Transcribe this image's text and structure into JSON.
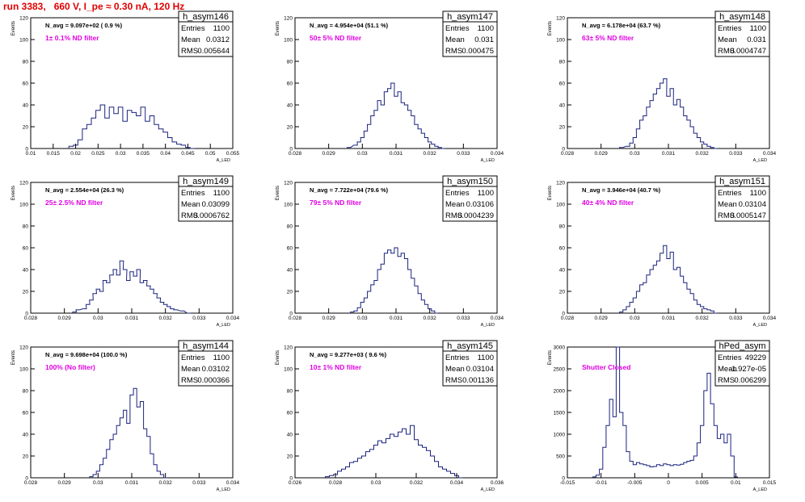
{
  "title": "run 3383,   660 V, I_pe ≈ 0.30 nA, 120 Hz",
  "axis_labels": {
    "y": "Events",
    "x": "A_LED"
  },
  "stat_labels": {
    "entries": "Entries",
    "mean": "Mean",
    "rms": "RMS"
  },
  "colors": {
    "hist": "#1a237e",
    "title": "#e00000",
    "filter_label": "#e000e0"
  },
  "chart_data": [
    {
      "type": "histogram",
      "name": "h_asym146",
      "nlabel": "N_avg = 9.097e+02 ( 0.9 %)",
      "filter": "1± 0.1% ND filter",
      "entries": "1100",
      "mean": "0.0312",
      "rms": "0.005644",
      "xlim": [
        0.01,
        0.055
      ],
      "ylim": [
        0,
        120
      ],
      "xticks": [
        "0.01",
        "0.015",
        "0.02",
        "0.025",
        "0.03",
        "0.035",
        "0.04",
        "0.045",
        "0.05",
        "0.055"
      ],
      "yticks": [
        "0",
        "20",
        "40",
        "60",
        "80",
        "100",
        "120"
      ],
      "x": [
        0.019,
        0.02,
        0.021,
        0.022,
        0.023,
        0.024,
        0.025,
        0.026,
        0.027,
        0.028,
        0.029,
        0.03,
        0.031,
        0.032,
        0.033,
        0.034,
        0.035,
        0.036,
        0.037,
        0.038,
        0.039,
        0.04,
        0.041,
        0.042,
        0.043,
        0.044,
        0.045,
        0.046
      ],
      "values": [
        2,
        3,
        8,
        18,
        22,
        28,
        35,
        40,
        28,
        38,
        32,
        38,
        25,
        35,
        33,
        30,
        38,
        25,
        30,
        22,
        18,
        15,
        10,
        6,
        4,
        3,
        1,
        0
      ]
    },
    {
      "type": "histogram",
      "name": "h_asym147",
      "nlabel": "N_avg = 4.954e+04 (51.1 %)",
      "filter": "50± 5% ND filter",
      "entries": "1100",
      "mean": "0.031",
      "rms": "0.000475",
      "xlim": [
        0.028,
        0.034
      ],
      "ylim": [
        0,
        120
      ],
      "xticks": [
        "0.028",
        "0.029",
        "0.03",
        "0.031",
        "0.032",
        "0.033",
        "0.034"
      ],
      "yticks": [
        "0",
        "20",
        "40",
        "60",
        "80",
        "100",
        "120"
      ],
      "x": [
        0.0296,
        0.0298,
        0.0299,
        0.03,
        0.0301,
        0.0302,
        0.0303,
        0.0304,
        0.0305,
        0.0306,
        0.0307,
        0.0308,
        0.0309,
        0.031,
        0.0311,
        0.0312,
        0.0313,
        0.0314,
        0.0315,
        0.0316,
        0.0317,
        0.0318,
        0.0319,
        0.032,
        0.0321,
        0.0322,
        0.0323,
        0.0324
      ],
      "values": [
        1,
        3,
        6,
        10,
        16,
        22,
        30,
        35,
        44,
        40,
        52,
        55,
        60,
        48,
        52,
        42,
        40,
        35,
        30,
        22,
        18,
        14,
        10,
        6,
        4,
        2,
        1,
        0
      ]
    },
    {
      "type": "histogram",
      "name": "h_asym148",
      "nlabel": "N_avg = 6.178e+04 (63.7 %)",
      "filter": "63± 5% ND filter",
      "entries": "1100",
      "mean": "0.031",
      "rms": "0.0004747",
      "xlim": [
        0.028,
        0.034
      ],
      "ylim": [
        0,
        120
      ],
      "xticks": [
        "0.028",
        "0.029",
        "0.03",
        "0.031",
        "0.032",
        "0.033",
        "0.034"
      ],
      "yticks": [
        "0",
        "20",
        "40",
        "60",
        "80",
        "100",
        "120"
      ],
      "x": [
        0.0296,
        0.0298,
        0.0299,
        0.03,
        0.0301,
        0.0302,
        0.0303,
        0.0304,
        0.0305,
        0.0306,
        0.0307,
        0.0308,
        0.0309,
        0.031,
        0.0311,
        0.0312,
        0.0313,
        0.0314,
        0.0315,
        0.0316,
        0.0317,
        0.0318,
        0.0319,
        0.032,
        0.0321,
        0.0322,
        0.0323,
        0.0324
      ],
      "values": [
        1,
        2,
        5,
        10,
        18,
        26,
        30,
        38,
        44,
        50,
        55,
        60,
        64,
        48,
        55,
        40,
        45,
        38,
        30,
        26,
        20,
        14,
        10,
        6,
        4,
        2,
        1,
        0
      ]
    },
    {
      "type": "histogram",
      "name": "h_asym149",
      "nlabel": "N_avg = 2.554e+04 (26.3 %)",
      "filter": "25± 2.5% ND filter",
      "entries": "1100",
      "mean": "0.03099",
      "rms": "0.0006762",
      "xlim": [
        0.028,
        0.034
      ],
      "ylim": [
        0,
        120
      ],
      "xticks": [
        "0.028",
        "0.029",
        "0.03",
        "0.031",
        "0.032",
        "0.033",
        "0.034"
      ],
      "yticks": [
        "0",
        "20",
        "40",
        "60",
        "80",
        "100",
        "120"
      ],
      "x": [
        0.0293,
        0.0294,
        0.0296,
        0.0297,
        0.0298,
        0.0299,
        0.03,
        0.0301,
        0.0302,
        0.0303,
        0.0304,
        0.0305,
        0.0306,
        0.0307,
        0.0308,
        0.0309,
        0.031,
        0.0311,
        0.0312,
        0.0313,
        0.0314,
        0.0315,
        0.0316,
        0.0317,
        0.0318,
        0.0319,
        0.032,
        0.0321,
        0.0322,
        0.0323,
        0.0325,
        0.0327
      ],
      "values": [
        1,
        3,
        4,
        8,
        12,
        18,
        22,
        20,
        30,
        28,
        35,
        40,
        35,
        48,
        40,
        30,
        38,
        34,
        40,
        28,
        30,
        25,
        22,
        18,
        14,
        10,
        8,
        6,
        4,
        3,
        2,
        0
      ]
    },
    {
      "type": "histogram",
      "name": "h_asym150",
      "nlabel": "N_avg = 7.722e+04 (79.6 %)",
      "filter": "79± 5% ND filter",
      "entries": "1100",
      "mean": "0.03106",
      "rms": "0.0004239",
      "xlim": [
        0.028,
        0.034
      ],
      "ylim": [
        0,
        120
      ],
      "xticks": [
        "0.028",
        "0.029",
        "0.03",
        "0.031",
        "0.032",
        "0.033",
        "0.034"
      ],
      "yticks": [
        "0",
        "20",
        "40",
        "60",
        "80",
        "100",
        "120"
      ],
      "x": [
        0.0297,
        0.0298,
        0.0299,
        0.03,
        0.0301,
        0.0302,
        0.0303,
        0.0304,
        0.0305,
        0.0306,
        0.0307,
        0.0308,
        0.0309,
        0.031,
        0.0311,
        0.0312,
        0.0313,
        0.0314,
        0.0315,
        0.0316,
        0.0317,
        0.0318,
        0.0319,
        0.032,
        0.0321,
        0.0322
      ],
      "values": [
        1,
        2,
        5,
        10,
        14,
        20,
        26,
        30,
        40,
        45,
        55,
        58,
        55,
        60,
        52,
        55,
        50,
        40,
        32,
        25,
        18,
        12,
        8,
        4,
        2,
        0
      ]
    },
    {
      "type": "histogram",
      "name": "h_asym151",
      "nlabel": "N_avg = 3.946e+04 (40.7 %)",
      "filter": "40± 4% ND filter",
      "entries": "1100",
      "mean": "0.03104",
      "rms": "0.0005147",
      "xlim": [
        0.028,
        0.034
      ],
      "ylim": [
        0,
        120
      ],
      "xticks": [
        "0.028",
        "0.029",
        "0.03",
        "0.031",
        "0.032",
        "0.033",
        "0.034"
      ],
      "yticks": [
        "0",
        "20",
        "40",
        "60",
        "80",
        "100",
        "120"
      ],
      "x": [
        0.0296,
        0.0297,
        0.0298,
        0.0299,
        0.03,
        0.0301,
        0.0302,
        0.0303,
        0.0304,
        0.0305,
        0.0306,
        0.0307,
        0.0308,
        0.0309,
        0.031,
        0.0311,
        0.0312,
        0.0313,
        0.0314,
        0.0315,
        0.0316,
        0.0317,
        0.0318,
        0.0319,
        0.032,
        0.0321,
        0.0322,
        0.0323,
        0.0324
      ],
      "values": [
        1,
        3,
        6,
        10,
        14,
        20,
        26,
        28,
        35,
        40,
        44,
        48,
        55,
        62,
        50,
        56,
        40,
        42,
        34,
        28,
        22,
        18,
        12,
        8,
        6,
        4,
        3,
        2,
        0
      ]
    },
    {
      "type": "histogram",
      "name": "h_asym144",
      "nlabel": "N_avg = 9.698e+04 (100.0 %)",
      "filter": "100% (No filter)",
      "entries": "1100",
      "mean": "0.03102",
      "rms": "0.000366",
      "xlim": [
        0.028,
        0.034
      ],
      "ylim": [
        0,
        120
      ],
      "xticks": [
        "0.028",
        "0.029",
        "0.03",
        "0.031",
        "0.032",
        "0.033",
        "0.034"
      ],
      "yticks": [
        "0",
        "20",
        "40",
        "60",
        "80",
        "100",
        "120"
      ],
      "x": [
        0.0298,
        0.0299,
        0.03,
        0.0301,
        0.0302,
        0.0303,
        0.0304,
        0.0305,
        0.0306,
        0.0307,
        0.0308,
        0.0309,
        0.031,
        0.0311,
        0.0312,
        0.0313,
        0.0314,
        0.0315,
        0.0316,
        0.0317,
        0.0318,
        0.0319,
        0.032
      ],
      "values": [
        1,
        3,
        6,
        12,
        18,
        26,
        35,
        40,
        48,
        55,
        62,
        50,
        76,
        82,
        65,
        70,
        45,
        38,
        22,
        12,
        6,
        3,
        0
      ]
    },
    {
      "type": "histogram",
      "name": "h_asym145",
      "nlabel": "N_avg = 9.277e+03 ( 9.6 %)",
      "filter": "10± 1% ND filter",
      "entries": "1100",
      "mean": "0.03104",
      "rms": "0.001136",
      "xlim": [
        0.026,
        0.036
      ],
      "ylim": [
        0,
        120
      ],
      "xticks": [
        "0.026",
        "0.028",
        "0.03",
        "0.032",
        "0.034",
        "0.036"
      ],
      "yticks": [
        "0",
        "20",
        "40",
        "60",
        "80",
        "100",
        "120"
      ],
      "x": [
        0.0276,
        0.0278,
        0.028,
        0.0282,
        0.0284,
        0.0286,
        0.0288,
        0.029,
        0.0292,
        0.0294,
        0.0296,
        0.0298,
        0.03,
        0.0302,
        0.0304,
        0.0306,
        0.0308,
        0.031,
        0.0312,
        0.0314,
        0.0316,
        0.0318,
        0.032,
        0.0322,
        0.0324,
        0.0326,
        0.0328,
        0.033,
        0.0332,
        0.0334,
        0.0336,
        0.0338,
        0.034,
        0.0342
      ],
      "values": [
        1,
        2,
        3,
        6,
        8,
        10,
        14,
        15,
        18,
        20,
        24,
        26,
        30,
        34,
        32,
        36,
        40,
        38,
        42,
        45,
        40,
        48,
        35,
        30,
        28,
        25,
        20,
        15,
        10,
        8,
        6,
        4,
        2,
        0
      ]
    },
    {
      "type": "histogram",
      "name": "hPed_asym",
      "nlabel": "",
      "filter": "Shutter Closed",
      "entries": "49229",
      "mean": "-1.927e-05",
      "rms": "0.006299",
      "xlim": [
        -0.015,
        0.015
      ],
      "ylim": [
        0,
        3000
      ],
      "xticks": [
        "-0.015",
        "-0.01",
        "-0.005",
        "0",
        "0.005",
        "0.01",
        "0.015"
      ],
      "yticks": [
        "0",
        "500",
        "1000",
        "1500",
        "2000",
        "2500",
        "3000"
      ],
      "x": [
        -0.011,
        -0.0105,
        -0.01,
        -0.0095,
        -0.009,
        -0.0085,
        -0.008,
        -0.0075,
        -0.007,
        -0.0065,
        -0.006,
        -0.0055,
        -0.005,
        -0.0045,
        -0.004,
        -0.0035,
        -0.003,
        -0.0025,
        -0.002,
        -0.0015,
        -0.001,
        -0.0005,
        0.0,
        0.0005,
        0.001,
        0.0015,
        0.002,
        0.0025,
        0.003,
        0.0035,
        0.004,
        0.0045,
        0.005,
        0.0055,
        0.006,
        0.0065,
        0.007,
        0.0075,
        0.008,
        0.0085,
        0.009,
        0.0095,
        0.01
      ],
      "values": [
        20,
        60,
        200,
        700,
        1200,
        1800,
        1400,
        3000,
        1500,
        1200,
        600,
        380,
        300,
        350,
        320,
        300,
        280,
        250,
        260,
        300,
        280,
        320,
        300,
        280,
        300,
        290,
        310,
        350,
        380,
        400,
        500,
        800,
        1200,
        2000,
        2400,
        1700,
        1200,
        900,
        1000,
        800,
        1000,
        500,
        20
      ]
    }
  ]
}
